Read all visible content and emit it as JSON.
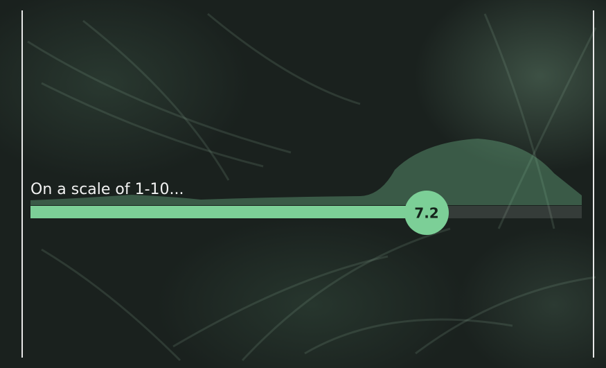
{
  "prompt": "On a scale of 1-10...",
  "slider": {
    "value": 7.2
  }
}
